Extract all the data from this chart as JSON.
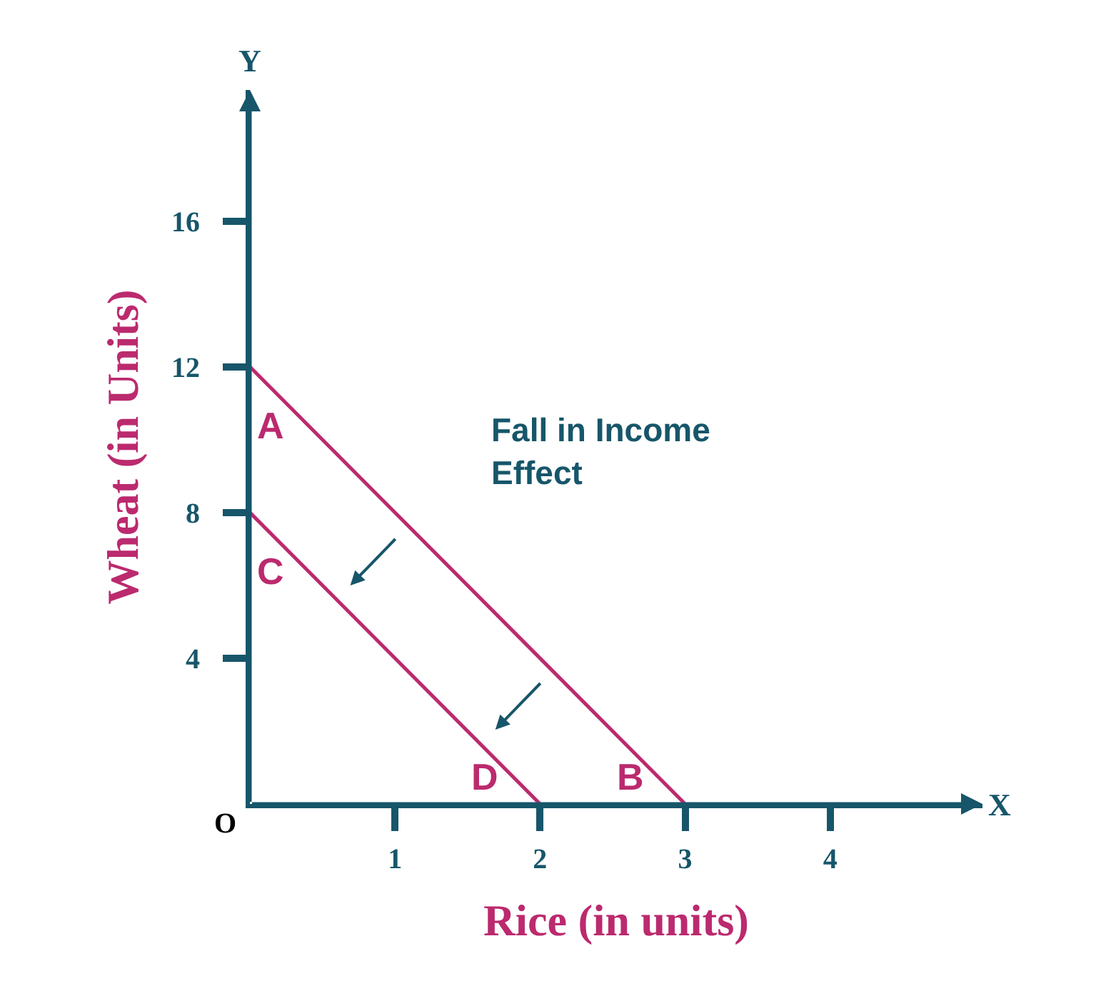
{
  "chart_data": {
    "type": "line",
    "xlabel": "Rice (in units)",
    "ylabel": "Wheat (in Units)",
    "series": [
      {
        "color": "#bb2a6e",
        "x": [
          0,
          3
        ],
        "values": [
          12,
          0
        ]
      },
      {
        "color": "#bb2a6e",
        "x": [
          0,
          2
        ],
        "values": [
          8,
          0
        ]
      }
    ],
    "xlim": [
      0,
      5.05
    ],
    "ylim": [
      0,
      19.6
    ],
    "xticks": [
      1,
      2,
      3,
      4
    ],
    "yticks": [
      4,
      8,
      12,
      16
    ],
    "annotations": [
      "Fall in Income Effect",
      {
        "text": "A",
        "x": 0,
        "y": 12
      },
      {
        "text": "C",
        "x": 0,
        "y": 8
      },
      {
        "text": "D",
        "x": 2,
        "y": 0
      },
      {
        "text": "B",
        "x": 3,
        "y": 0
      },
      "O",
      "X",
      "Y"
    ],
    "grid": false,
    "marker": "none",
    "line_style": "solid"
  }
}
